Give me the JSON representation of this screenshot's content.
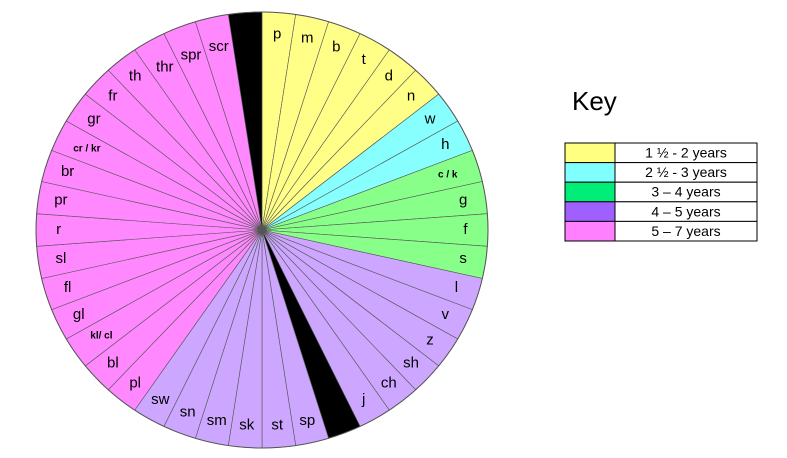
{
  "wheel": {
    "sectors": [
      {
        "label": "p",
        "key": 0
      },
      {
        "label": "m",
        "key": 0
      },
      {
        "label": "b",
        "key": 0
      },
      {
        "label": "t",
        "key": 0
      },
      {
        "label": "d",
        "key": 0
      },
      {
        "label": "n",
        "key": 0
      },
      {
        "label": "w",
        "key": 1
      },
      {
        "label": "h",
        "key": 1
      },
      {
        "label": "c / k",
        "key": 2
      },
      {
        "label": "g",
        "key": 2
      },
      {
        "label": "f",
        "key": 2
      },
      {
        "label": "s",
        "key": 2
      },
      {
        "label": "l",
        "key": 3
      },
      {
        "label": "v",
        "key": 3
      },
      {
        "label": "z",
        "key": 3
      },
      {
        "label": "sh",
        "key": 3
      },
      {
        "label": "ch",
        "key": 3
      },
      {
        "label": "j",
        "key": 3
      },
      {
        "label": "sp",
        "key": 3
      },
      {
        "label": "st",
        "key": 3
      },
      {
        "label": "sk",
        "key": 3
      },
      {
        "label": "sm",
        "key": 3
      },
      {
        "label": "sn",
        "key": 3
      },
      {
        "label": "sw",
        "key": 3
      },
      {
        "label": "pl",
        "key": 4
      },
      {
        "label": "bl",
        "key": 4
      },
      {
        "label": "kl/ cl",
        "key": 4
      },
      {
        "label": "gl",
        "key": 4
      },
      {
        "label": "fl",
        "key": 4
      },
      {
        "label": "sl",
        "key": 4
      },
      {
        "label": "r",
        "key": 4
      },
      {
        "label": "pr",
        "key": 4
      },
      {
        "label": "br",
        "key": 4
      },
      {
        "label": "cr / kr",
        "key": 4
      },
      {
        "label": "gr",
        "key": 4
      },
      {
        "label": "fr",
        "key": 4
      },
      {
        "label": "th",
        "key": 4
      },
      {
        "label": "thr",
        "key": 4
      },
      {
        "label": "spr",
        "key": 4
      },
      {
        "label": "scr",
        "key": 4
      }
    ]
  },
  "key": {
    "title": "Key",
    "entries": [
      {
        "label": "1 ½ - 2 years",
        "color": "#ffff80",
        "fill": "#ffff88"
      },
      {
        "label": "2 ½ - 3 years",
        "color": "#80ffff",
        "fill": "#88ffff"
      },
      {
        "label": "3 – 4 years",
        "color": "#00ee77",
        "fill": "#88ff88"
      },
      {
        "label": "4 – 5 years",
        "color": "#a060ff",
        "fill": "#cca6ff"
      },
      {
        "label": "5 – 7 years",
        "color": "#ff80ff",
        "fill": "#ff88ff"
      }
    ]
  }
}
